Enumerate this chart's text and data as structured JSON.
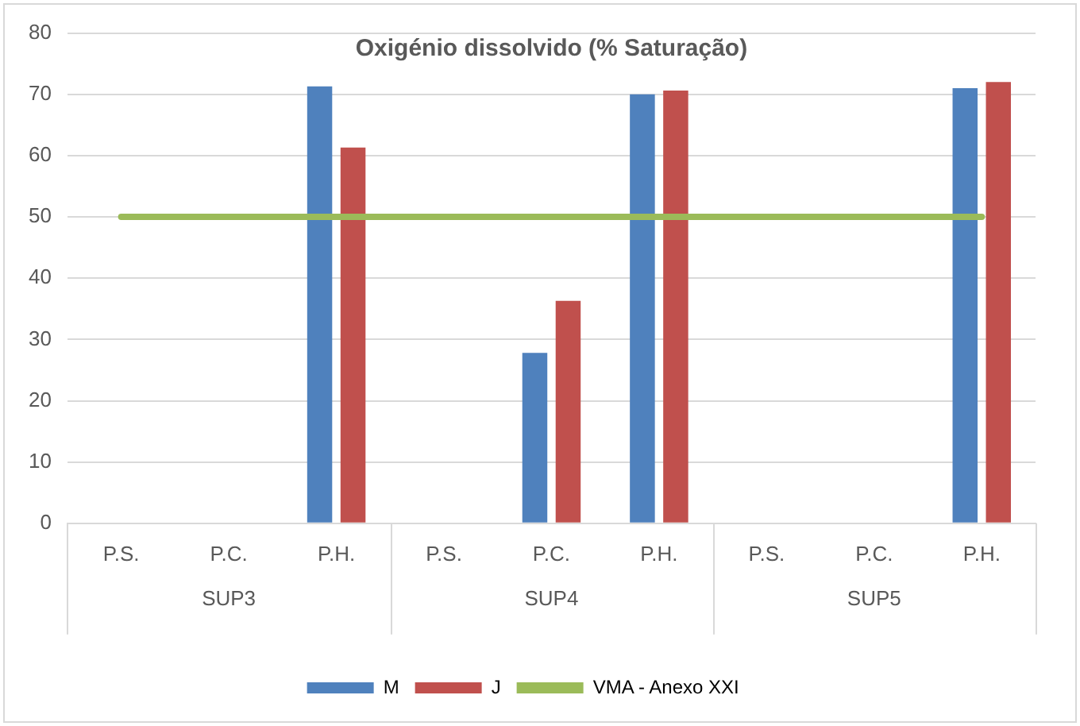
{
  "chart_data": {
    "type": "bar",
    "title": "Oxigénio dissolvido (% Saturação)",
    "categories": [
      "P.S.",
      "P.C.",
      "P.H.",
      "P.S.",
      "P.C.",
      "P.H.",
      "P.S.",
      "P.C.",
      "P.H."
    ],
    "annotations": [
      "SUP3",
      "SUP4",
      "SUP5"
    ],
    "series": [
      {
        "name": "M",
        "color": "#4f81bd",
        "values": [
          null,
          null,
          71.3,
          null,
          27.8,
          70,
          null,
          null,
          71
        ]
      },
      {
        "name": "J",
        "color": "#c0504d",
        "values": [
          null,
          null,
          61.3,
          null,
          36.3,
          70.6,
          null,
          null,
          72
        ]
      },
      {
        "name": "VMA - Anexo XXI",
        "type": "line",
        "color": "#9bbb59",
        "values": [
          50,
          50,
          50,
          50,
          50,
          50,
          50,
          50,
          50
        ]
      }
    ],
    "ylim": [
      0,
      80
    ],
    "yticks": [
      0,
      10,
      20,
      30,
      40,
      50,
      60,
      70,
      80
    ],
    "grid": "y",
    "legend": "bottom",
    "marker": "none"
  }
}
